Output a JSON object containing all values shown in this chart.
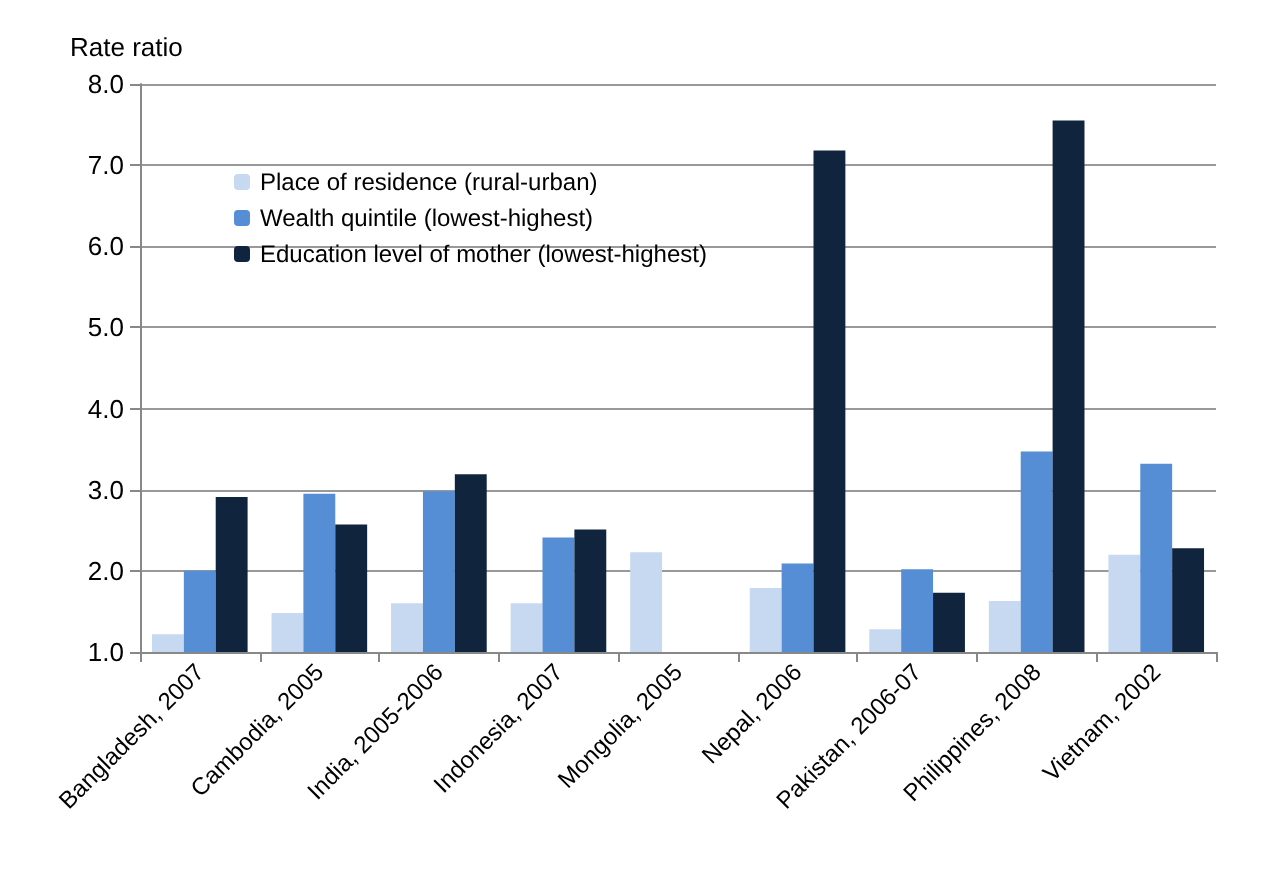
{
  "chart_data": {
    "type": "bar",
    "ylabel": "Rate ratio",
    "categories": [
      "Bangladesh, 2007",
      "Cambodia, 2005",
      "India, 2005-2006",
      "Indonesia, 2007",
      "Mongolia, 2005",
      "Nepal, 2006",
      "Pakistan, 2006-07",
      "Philippines, 2008",
      "Vietnam, 2002"
    ],
    "series": [
      {
        "name": "Place of residence (rural-urban)",
        "color": "#c6d9f0",
        "values": [
          1.22,
          1.48,
          1.6,
          1.6,
          2.23,
          1.79,
          1.28,
          1.63,
          2.2
        ]
      },
      {
        "name": "Wealth quintile (lowest-highest)",
        "color": "#558ed5",
        "values": [
          2.0,
          2.95,
          2.98,
          2.41,
          null,
          2.09,
          2.02,
          3.47,
          3.32
        ]
      },
      {
        "name": "Education level of mother (lowest-highest)",
        "color": "#10243e",
        "values": [
          2.91,
          2.57,
          3.19,
          2.51,
          null,
          7.18,
          1.73,
          7.55,
          2.28
        ]
      }
    ],
    "ylim": [
      1,
      8
    ],
    "yticks": [
      {
        "value": 1,
        "label": "1.0"
      },
      {
        "value": 2,
        "label": "2.0"
      },
      {
        "value": 3,
        "label": "3.0"
      },
      {
        "value": 4,
        "label": "4.0"
      },
      {
        "value": 5,
        "label": "5.0"
      },
      {
        "value": 6,
        "label": "6.0"
      },
      {
        "value": 7,
        "label": "7.0"
      },
      {
        "value": 8,
        "label": "8.0"
      }
    ],
    "grid": "y",
    "legend": "top left"
  }
}
